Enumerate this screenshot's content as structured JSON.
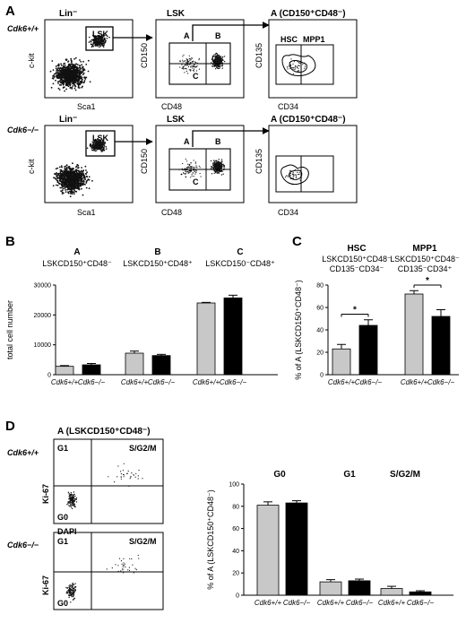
{
  "panels": {
    "A": {
      "label": "A",
      "rows": [
        {
          "genotype": "Cdk6+/+",
          "plots": [
            {
              "title": "Lin⁻",
              "xlabel": "Sca1",
              "ylabel": "c-kit",
              "gates": [
                "LSK"
              ]
            },
            {
              "title": "LSK",
              "xlabel": "CD48",
              "ylabel": "CD150",
              "gates": [
                "A",
                "B",
                "C"
              ]
            },
            {
              "title": "A (CD150⁺CD48⁻)",
              "xlabel": "CD34",
              "ylabel": "CD135",
              "gates": [
                "HSC",
                "MPP1"
              ]
            }
          ]
        },
        {
          "genotype": "Cdk6−/−",
          "plots": [
            {
              "title": "Lin⁻",
              "xlabel": "Sca1",
              "ylabel": "c-kit",
              "gates": [
                "LSK"
              ]
            },
            {
              "title": "LSK",
              "xlabel": "CD48",
              "ylabel": "CD150",
              "gates": [
                "A",
                "B",
                "C"
              ]
            },
            {
              "title": "A (CD150⁺CD48⁻)",
              "xlabel": "CD34",
              "ylabel": "CD135",
              "gates": []
            }
          ]
        }
      ]
    },
    "B": {
      "label": "B",
      "groups": [
        {
          "letter": "A",
          "desc": "LSKCD150⁺CD48⁻"
        },
        {
          "letter": "B",
          "desc": "LSKCD150⁺CD48⁺"
        },
        {
          "letter": "C",
          "desc": "LSKCD150⁻CD48⁺"
        }
      ]
    },
    "C": {
      "label": "C",
      "groups": [
        {
          "name": "HSC",
          "desc1": "LSKCD150⁺CD48⁻",
          "desc2": "CD135⁻CD34⁻"
        },
        {
          "name": "MPP1",
          "desc1": "LSKCD150⁺CD48⁻",
          "desc2": "CD135⁻CD34⁺"
        }
      ],
      "sig": "*"
    },
    "D": {
      "label": "D",
      "title": "A (LSKCD150⁺CD48⁻)",
      "genotypes": [
        "Cdk6+/+",
        "Cdk6−/−"
      ],
      "quadrants": {
        "ul": "G1",
        "ur": "S/G2/M",
        "ll": "G0"
      },
      "xlabel": "DAPI",
      "ylabel": "Ki-67",
      "phases": [
        "G0",
        "G1",
        "S/G2/M"
      ]
    }
  },
  "chart_data": [
    {
      "type": "bar",
      "panel": "B",
      "ylabel": "total cell number",
      "ylim": [
        0,
        30000
      ],
      "yticks": [
        0,
        10000,
        20000,
        30000
      ],
      "categories": [
        "Cdk6+/+",
        "Cdk6−/−",
        "Cdk6+/+",
        "Cdk6−/−",
        "Cdk6+/+",
        "Cdk6−/−"
      ],
      "group_labels": [
        "A",
        "A",
        "B",
        "B",
        "C",
        "C"
      ],
      "values": [
        2800,
        3300,
        7200,
        6400,
        24000,
        25700
      ],
      "errors": [
        250,
        450,
        700,
        400,
        200,
        900
      ],
      "colors": [
        "#c8c8c8",
        "#000000",
        "#c8c8c8",
        "#000000",
        "#c8c8c8",
        "#000000"
      ]
    },
    {
      "type": "bar",
      "panel": "C",
      "ylabel": "% of A (LSKCD150⁺CD48⁻)",
      "ylim": [
        0,
        80
      ],
      "yticks": [
        0,
        20,
        40,
        60,
        80
      ],
      "categories": [
        "Cdk6+/+",
        "Cdk6−/−",
        "Cdk6+/+",
        "Cdk6−/−"
      ],
      "values": [
        23,
        44,
        72,
        52
      ],
      "errors": [
        4,
        5,
        3,
        6
      ],
      "colors": [
        "#c8c8c8",
        "#000000",
        "#c8c8c8",
        "#000000"
      ]
    },
    {
      "type": "bar",
      "panel": "D",
      "ylabel": "% of A (LSKCD150⁺CD48⁻)",
      "ylim": [
        0,
        100
      ],
      "yticks": [
        0,
        20,
        40,
        60,
        80,
        100
      ],
      "categories": [
        "Cdk6+/+",
        "Cdk6−/−",
        "Cdk6+/+",
        "Cdk6−/−",
        "Cdk6+/+",
        "Cdk6−/−"
      ],
      "values": [
        81,
        83,
        12,
        13,
        6,
        3
      ],
      "errors": [
        3,
        2,
        2,
        1.5,
        2,
        1
      ],
      "colors": [
        "#c8c8c8",
        "#000000",
        "#c8c8c8",
        "#000000",
        "#c8c8c8",
        "#000000"
      ]
    }
  ]
}
